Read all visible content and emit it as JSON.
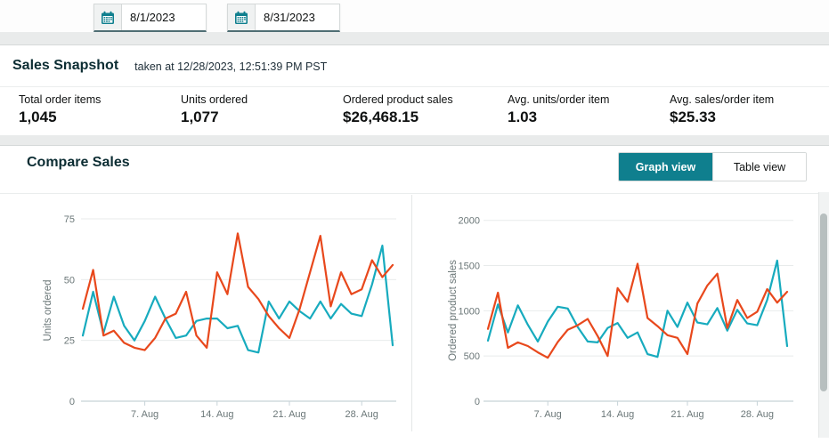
{
  "date_range": {
    "start": "8/1/2023",
    "end": "8/31/2023"
  },
  "snapshot": {
    "title": "Sales Snapshot",
    "taken_at": "taken at 12/28/2023, 12:51:39 PM PST",
    "metrics": [
      {
        "label": "Total order items",
        "value": "1,045"
      },
      {
        "label": "Units ordered",
        "value": "1,077"
      },
      {
        "label": "Ordered product sales",
        "value": "$26,468.15"
      },
      {
        "label": "Avg. units/order item",
        "value": "1.03"
      },
      {
        "label": "Avg. sales/order item",
        "value": "$25.33"
      }
    ]
  },
  "compare": {
    "title": "Compare Sales",
    "graph_view_label": "Graph view",
    "table_view_label": "Table view"
  },
  "colors": {
    "accent_teal": "#0f7f8e",
    "line_teal": "#17abbe",
    "line_orange": "#e8481c",
    "gridline": "#e8ebeb",
    "axis": "#c7d3d8",
    "tick_text": "#6b7778"
  },
  "chart_data": [
    {
      "type": "line",
      "ylabel": "Units ordered",
      "x_unit": "day of August 2023",
      "ylim": [
        0,
        85
      ],
      "grid": true,
      "legend": "none",
      "yticks": [
        {
          "value": 0,
          "label": "0"
        },
        {
          "value": 25,
          "label": "25"
        },
        {
          "value": 50,
          "label": "50"
        },
        {
          "value": 75,
          "label": "75"
        }
      ],
      "xticks": [
        {
          "day": 7,
          "label": "7. Aug"
        },
        {
          "day": 14,
          "label": "14. Aug"
        },
        {
          "day": 21,
          "label": "21. Aug"
        },
        {
          "day": 28,
          "label": "28. Aug"
        }
      ],
      "series": [
        {
          "name": "units-ordered-current",
          "color": "#17abbe",
          "values": [
            27,
            45,
            28,
            43,
            31,
            25,
            33,
            43,
            34,
            26,
            27,
            33,
            34,
            34,
            30,
            31,
            21,
            20,
            41,
            34,
            41,
            37,
            34,
            41,
            34,
            40,
            36,
            35,
            48,
            64,
            23
          ]
        },
        {
          "name": "units-ordered-comparison",
          "color": "#e8481c",
          "values": [
            38,
            54,
            27,
            29,
            24,
            22,
            21,
            26,
            34,
            36,
            45,
            27,
            22,
            53,
            44,
            69,
            47,
            42,
            35,
            30,
            26,
            38,
            53,
            68,
            39,
            53,
            44,
            46,
            58,
            51,
            56
          ]
        }
      ]
    },
    {
      "type": "line",
      "ylabel": "Ordered product sales",
      "x_unit": "day of August 2023",
      "ylim": [
        0,
        2280
      ],
      "grid": true,
      "legend": "none",
      "yticks": [
        {
          "value": 0,
          "label": "0"
        },
        {
          "value": 500,
          "label": "500"
        },
        {
          "value": 1000,
          "label": "1000"
        },
        {
          "value": 1500,
          "label": "1500"
        },
        {
          "value": 2000,
          "label": "2000"
        }
      ],
      "xticks": [
        {
          "day": 7,
          "label": "7. Aug"
        },
        {
          "day": 14,
          "label": "14. Aug"
        },
        {
          "day": 21,
          "label": "21. Aug"
        },
        {
          "day": 28,
          "label": "28. Aug"
        }
      ],
      "series": [
        {
          "name": "product-sales-current",
          "color": "#17abbe",
          "values": [
            670,
            1070,
            760,
            1060,
            845,
            660,
            880,
            1045,
            1025,
            820,
            660,
            650,
            810,
            865,
            700,
            760,
            520,
            490,
            1000,
            820,
            1090,
            870,
            850,
            1030,
            780,
            1010,
            860,
            840,
            1120,
            1555,
            610
          ]
        },
        {
          "name": "product-sales-comparison",
          "color": "#e8481c",
          "values": [
            800,
            1200,
            590,
            650,
            610,
            540,
            480,
            655,
            790,
            840,
            910,
            720,
            500,
            1250,
            1100,
            1520,
            920,
            830,
            730,
            700,
            520,
            1080,
            1280,
            1410,
            810,
            1120,
            920,
            990,
            1240,
            1090,
            1210
          ]
        }
      ]
    }
  ]
}
